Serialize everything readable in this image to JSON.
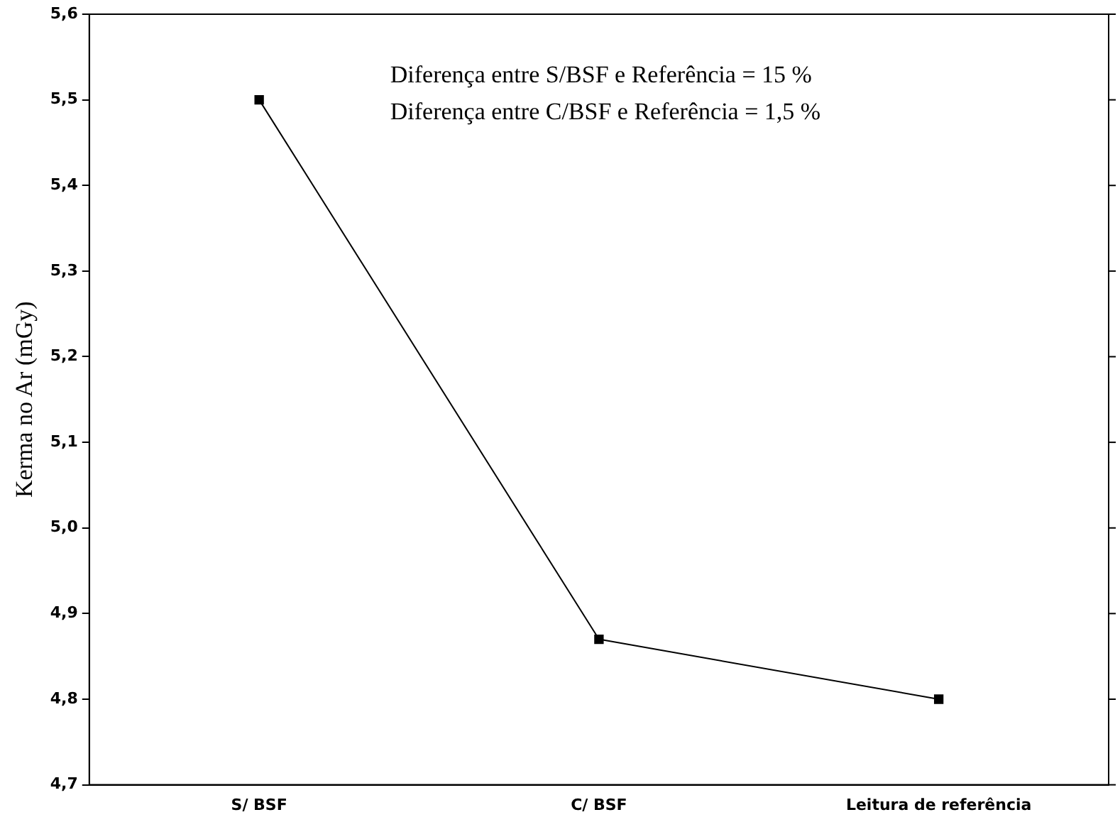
{
  "chart_data": {
    "type": "line",
    "ylabel": "Kerma no Ar (mGy)",
    "categories": [
      "S/ BSF",
      "C/ BSF",
      "Leitura de referência"
    ],
    "values": [
      5.5,
      4.87,
      4.8
    ],
    "color": "#000000",
    "marker": "square",
    "line_style": "solid",
    "grid": false,
    "legend": false,
    "ylim": [
      4.7,
      5.6
    ],
    "yticks": [
      {
        "value": 4.7,
        "label": "4,7"
      },
      {
        "value": 4.8,
        "label": "4,8"
      },
      {
        "value": 4.9,
        "label": "4,9"
      },
      {
        "value": 5.0,
        "label": "5,0"
      },
      {
        "value": 5.1,
        "label": "5,1"
      },
      {
        "value": 5.2,
        "label": "5,2"
      },
      {
        "value": 5.3,
        "label": "5,3"
      },
      {
        "value": 5.4,
        "label": "5,4"
      },
      {
        "value": 5.5,
        "label": "5,5"
      },
      {
        "value": 5.6,
        "label": "5,6"
      }
    ],
    "annotations": [
      "Diferença entre S/BSF e Referência = 15 %",
      "Diferença entre C/BSF e Referência = 1,5 %"
    ]
  }
}
